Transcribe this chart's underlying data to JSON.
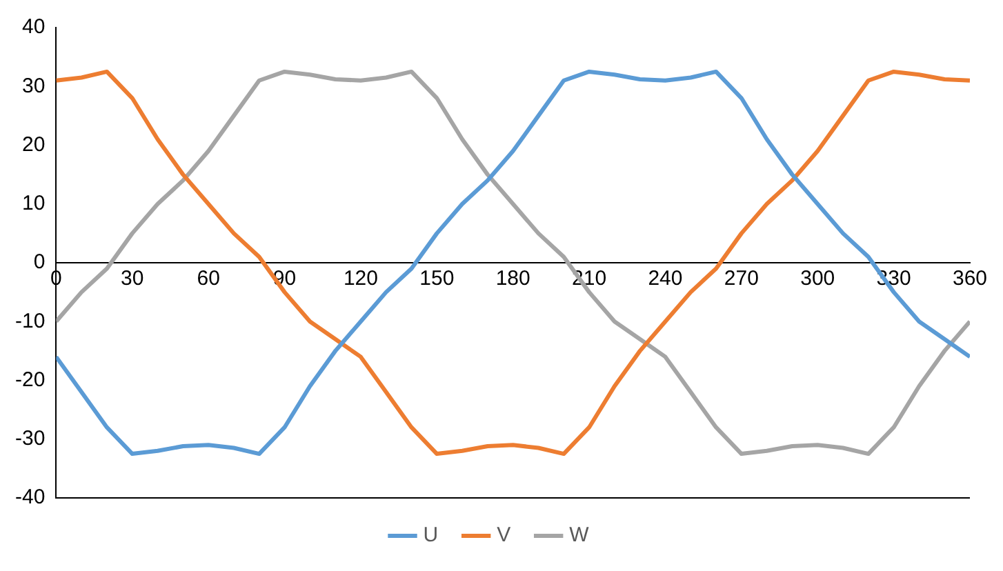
{
  "chart_data": {
    "type": "line",
    "x": [
      0,
      10,
      20,
      30,
      40,
      50,
      60,
      70,
      80,
      90,
      100,
      110,
      120,
      130,
      140,
      150,
      160,
      170,
      180,
      190,
      200,
      210,
      220,
      230,
      240,
      250,
      260,
      270,
      280,
      290,
      300,
      310,
      320,
      330,
      340,
      350,
      360
    ],
    "series": [
      {
        "name": "U",
        "color": "#5b9bd5",
        "values": [
          -16,
          -22,
          -28,
          -32.5,
          -32,
          -31.2,
          -31,
          -31.5,
          -32.5,
          -28,
          -21,
          -15,
          -10,
          -5,
          -1,
          5,
          10,
          14,
          19,
          25,
          31,
          32.5,
          32,
          31.2,
          31,
          31.5,
          32.5,
          28,
          21,
          15,
          10,
          5,
          1,
          -5,
          -10,
          -13,
          -16
        ]
      },
      {
        "name": "V",
        "color": "#ed7d31",
        "values": [
          31,
          31.5,
          32.5,
          28,
          21,
          15,
          10,
          5,
          1,
          -5,
          -10,
          -13,
          -16,
          -22,
          -28,
          -32.5,
          -32,
          -31.2,
          -31,
          -31.5,
          -32.5,
          -28,
          -21,
          -15,
          -10,
          -5,
          -1,
          5,
          10,
          14,
          19,
          25,
          31,
          32.5,
          32,
          31.2,
          31
        ]
      },
      {
        "name": "W",
        "color": "#a5a5a5",
        "values": [
          -10,
          -5,
          -1,
          5,
          10,
          14,
          19,
          25,
          31,
          32.5,
          32,
          31.2,
          31,
          31.5,
          32.5,
          28,
          21,
          15,
          10,
          5,
          1,
          -5,
          -10,
          -13,
          -16,
          -22,
          -28,
          -32.5,
          -32,
          -31.2,
          -31,
          -31.5,
          -32.5,
          -28,
          -21,
          -15,
          -10
        ]
      }
    ],
    "xlim": [
      0,
      360
    ],
    "xticks": [
      0,
      30,
      60,
      90,
      120,
      150,
      180,
      210,
      240,
      270,
      300,
      330,
      360
    ],
    "ylim": [
      -40,
      40
    ],
    "yticks": [
      -40,
      -30,
      -20,
      -10,
      0,
      10,
      20,
      30,
      40
    ],
    "grid": false,
    "legend": "bottom",
    "marker": "none",
    "line_style": "solid"
  }
}
